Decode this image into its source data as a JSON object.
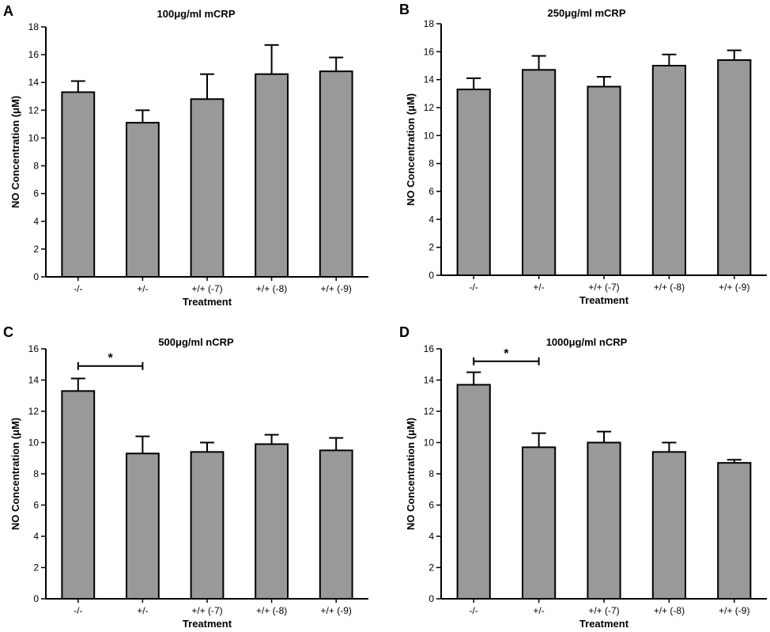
{
  "colors": {
    "bar": "#999999",
    "stroke": "#000000",
    "background": "#ffffff"
  },
  "chart_data": [
    {
      "panel": "A",
      "type": "bar",
      "title": "100μg/ml mCRP",
      "xlabel": "Treatment",
      "ylabel": "NO Concentration (μM)",
      "categories": [
        "-/-",
        "+/-",
        "+/+ (-7)",
        "+/+ (-8)",
        "+/+ (-9)"
      ],
      "values": [
        13.3,
        11.1,
        12.8,
        14.6,
        14.8
      ],
      "errors": [
        0.8,
        0.9,
        1.8,
        2.1,
        1.0
      ],
      "ylim": [
        0,
        18
      ],
      "yticks": [
        0,
        2,
        4,
        6,
        8,
        10,
        12,
        14,
        16,
        18
      ],
      "significance": null
    },
    {
      "panel": "B",
      "type": "bar",
      "title": "250μg/ml mCRP",
      "xlabel": "Treatment",
      "ylabel": "NO Concentration (μM)",
      "categories": [
        "-/-",
        "+/-",
        "+/+ (-7)",
        "+/+ (-8)",
        "+/+ (-9)"
      ],
      "values": [
        13.3,
        14.7,
        13.5,
        15.0,
        15.4
      ],
      "errors": [
        0.8,
        1.0,
        0.7,
        0.8,
        0.7
      ],
      "ylim": [
        0,
        18
      ],
      "yticks": [
        0,
        2,
        4,
        6,
        8,
        10,
        12,
        14,
        16,
        18
      ],
      "significance": null
    },
    {
      "panel": "C",
      "type": "bar",
      "title": "500μg/ml nCRP",
      "xlabel": "Treatment",
      "ylabel": "NO Concentration (μM)",
      "categories": [
        "-/-",
        "+/-",
        "+/+ (-7)",
        "+/+ (-8)",
        "+/+ (-9)"
      ],
      "values": [
        13.3,
        9.3,
        9.4,
        9.9,
        9.5
      ],
      "errors": [
        0.8,
        1.1,
        0.6,
        0.6,
        0.8
      ],
      "ylim": [
        0,
        16
      ],
      "yticks": [
        0,
        2,
        4,
        6,
        8,
        10,
        12,
        14,
        16
      ],
      "significance": {
        "from": 0,
        "to": 1,
        "y": 14.9,
        "label": "*"
      }
    },
    {
      "panel": "D",
      "type": "bar",
      "title": "1000μg/ml nCRP",
      "xlabel": "Treatment",
      "ylabel": "NO Concentration (μM)",
      "categories": [
        "-/-",
        "+/-",
        "+/+ (-7)",
        "+/+ (-8)",
        "+/+ (-9)"
      ],
      "values": [
        13.7,
        9.7,
        10.0,
        9.4,
        8.7
      ],
      "errors": [
        0.8,
        0.9,
        0.7,
        0.6,
        0.2
      ],
      "ylim": [
        0,
        16
      ],
      "yticks": [
        0,
        2,
        4,
        6,
        8,
        10,
        12,
        14,
        16
      ],
      "significance": {
        "from": 0,
        "to": 1,
        "y": 15.2,
        "label": "*"
      }
    }
  ]
}
